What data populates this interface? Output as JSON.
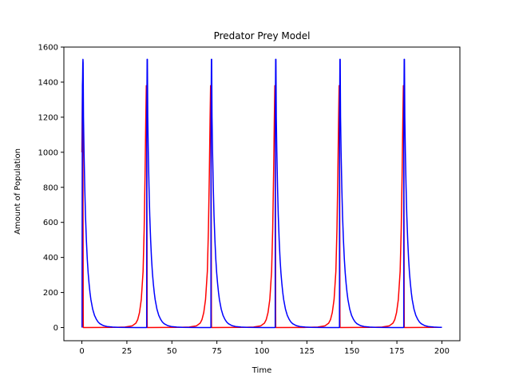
{
  "chart_data": {
    "type": "line",
    "title": "Predator Prey Model",
    "xlabel": "Time",
    "ylabel": "Amount of Population",
    "xlim": [
      -10,
      210
    ],
    "ylim": [
      -75,
      1600
    ],
    "xticks": [
      0,
      25,
      50,
      75,
      100,
      125,
      150,
      175,
      200
    ],
    "yticks": [
      0,
      200,
      400,
      600,
      800,
      1000,
      1200,
      1400,
      1600
    ],
    "grid": false,
    "legend": "none",
    "period": 35.7,
    "t_end": 200,
    "series": [
      {
        "color": "#ff0000",
        "points": [
          [
            0,
            1000
          ],
          [
            0.2,
            1220
          ],
          [
            0.35,
            1380
          ],
          [
            0.5,
            1250
          ],
          [
            0.6,
            900
          ],
          [
            0.7,
            400
          ],
          [
            0.75,
            80
          ],
          [
            0.8,
            0
          ]
        ],
        "cycle_points": [
          [
            0,
            0
          ],
          [
            18,
            1
          ],
          [
            24,
            3
          ],
          [
            28,
            10
          ],
          [
            30,
            25
          ],
          [
            31,
            45
          ],
          [
            32,
            85
          ],
          [
            33,
            160
          ],
          [
            34,
            320
          ],
          [
            34.6,
            560
          ],
          [
            35.1,
            870
          ],
          [
            35.5,
            1180
          ],
          [
            35.8,
            1380
          ],
          [
            36,
            1250
          ],
          [
            36.1,
            900
          ],
          [
            36.2,
            400
          ],
          [
            36.25,
            80
          ],
          [
            36.3,
            0
          ]
        ]
      },
      {
        "color": "#0000ff",
        "points": [
          [
            0.1,
            0
          ],
          [
            0.2,
            900
          ],
          [
            0.25,
            1200
          ],
          [
            0.3,
            1380
          ],
          [
            0.4,
            1420
          ],
          [
            0.5,
            1500
          ],
          [
            0.6,
            1530
          ],
          [
            0.7,
            1510
          ],
          [
            0.9,
            1200
          ],
          [
            1.2,
            1000
          ],
          [
            1.6,
            800
          ],
          [
            2.0,
            640
          ],
          [
            2.5,
            500
          ],
          [
            3.0,
            390
          ],
          [
            3.5,
            310
          ],
          [
            4.0,
            250
          ],
          [
            4.5,
            200
          ],
          [
            5,
            160
          ],
          [
            6,
            105
          ],
          [
            7,
            70
          ],
          [
            8,
            48
          ],
          [
            9,
            32
          ],
          [
            10,
            22
          ],
          [
            12,
            11
          ],
          [
            14,
            6
          ],
          [
            17,
            3
          ],
          [
            20,
            1.5
          ],
          [
            25,
            0.5
          ],
          [
            30,
            0.2
          ],
          [
            35.8,
            0.1
          ]
        ],
        "cycle_points": [
          [
            0,
            0.1
          ],
          [
            0.3,
            0.5
          ],
          [
            0.35,
            1200
          ],
          [
            0.5,
            1440
          ],
          [
            0.55,
            1530
          ],
          [
            0.7,
            1530
          ],
          [
            0.9,
            1200
          ],
          [
            1.2,
            1000
          ],
          [
            1.6,
            800
          ],
          [
            2.0,
            640
          ],
          [
            2.5,
            500
          ],
          [
            3.0,
            390
          ],
          [
            3.5,
            310
          ],
          [
            4.0,
            250
          ],
          [
            4.5,
            200
          ],
          [
            5,
            160
          ],
          [
            6,
            105
          ],
          [
            7,
            70
          ],
          [
            8,
            48
          ],
          [
            9,
            32
          ],
          [
            10,
            22
          ],
          [
            12,
            11
          ],
          [
            14,
            6
          ],
          [
            17,
            3
          ],
          [
            20,
            1.5
          ],
          [
            25,
            0.5
          ],
          [
            30,
            0.2
          ],
          [
            35.7,
            0.1
          ]
        ]
      }
    ]
  }
}
